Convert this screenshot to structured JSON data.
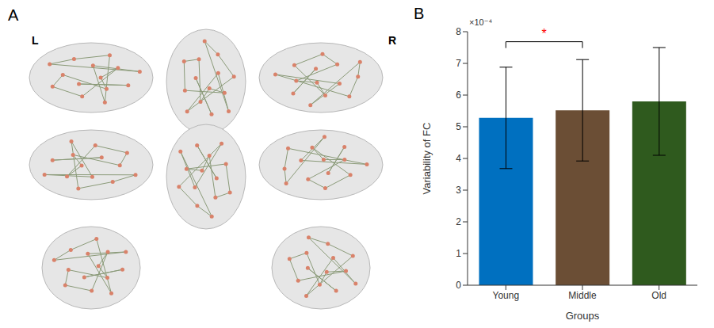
{
  "panel_labels": [
    "A",
    "B"
  ],
  "brain_views": {
    "left_label": "L",
    "right_label": "R"
  },
  "chart_data": {
    "type": "bar",
    "x_label": "Groups",
    "y_label": "Variability of FC",
    "categories": [
      "Young",
      "Middle",
      "Old"
    ],
    "values": [
      5.28,
      5.52,
      5.8
    ],
    "errors": [
      1.6,
      1.6,
      1.7
    ],
    "colors": [
      "#0070c0",
      "#6b4e35",
      "#2f5a1e"
    ],
    "ylim": [
      0,
      8
    ],
    "yticks": [
      0,
      1,
      2,
      3,
      4,
      5,
      6,
      7,
      8
    ],
    "grid": false,
    "annotations": [
      {
        "text": "×10⁻⁴",
        "axis": "y"
      },
      {
        "text": "*",
        "from": "Young",
        "to": "Middle",
        "color": "#ff0000"
      }
    ]
  }
}
